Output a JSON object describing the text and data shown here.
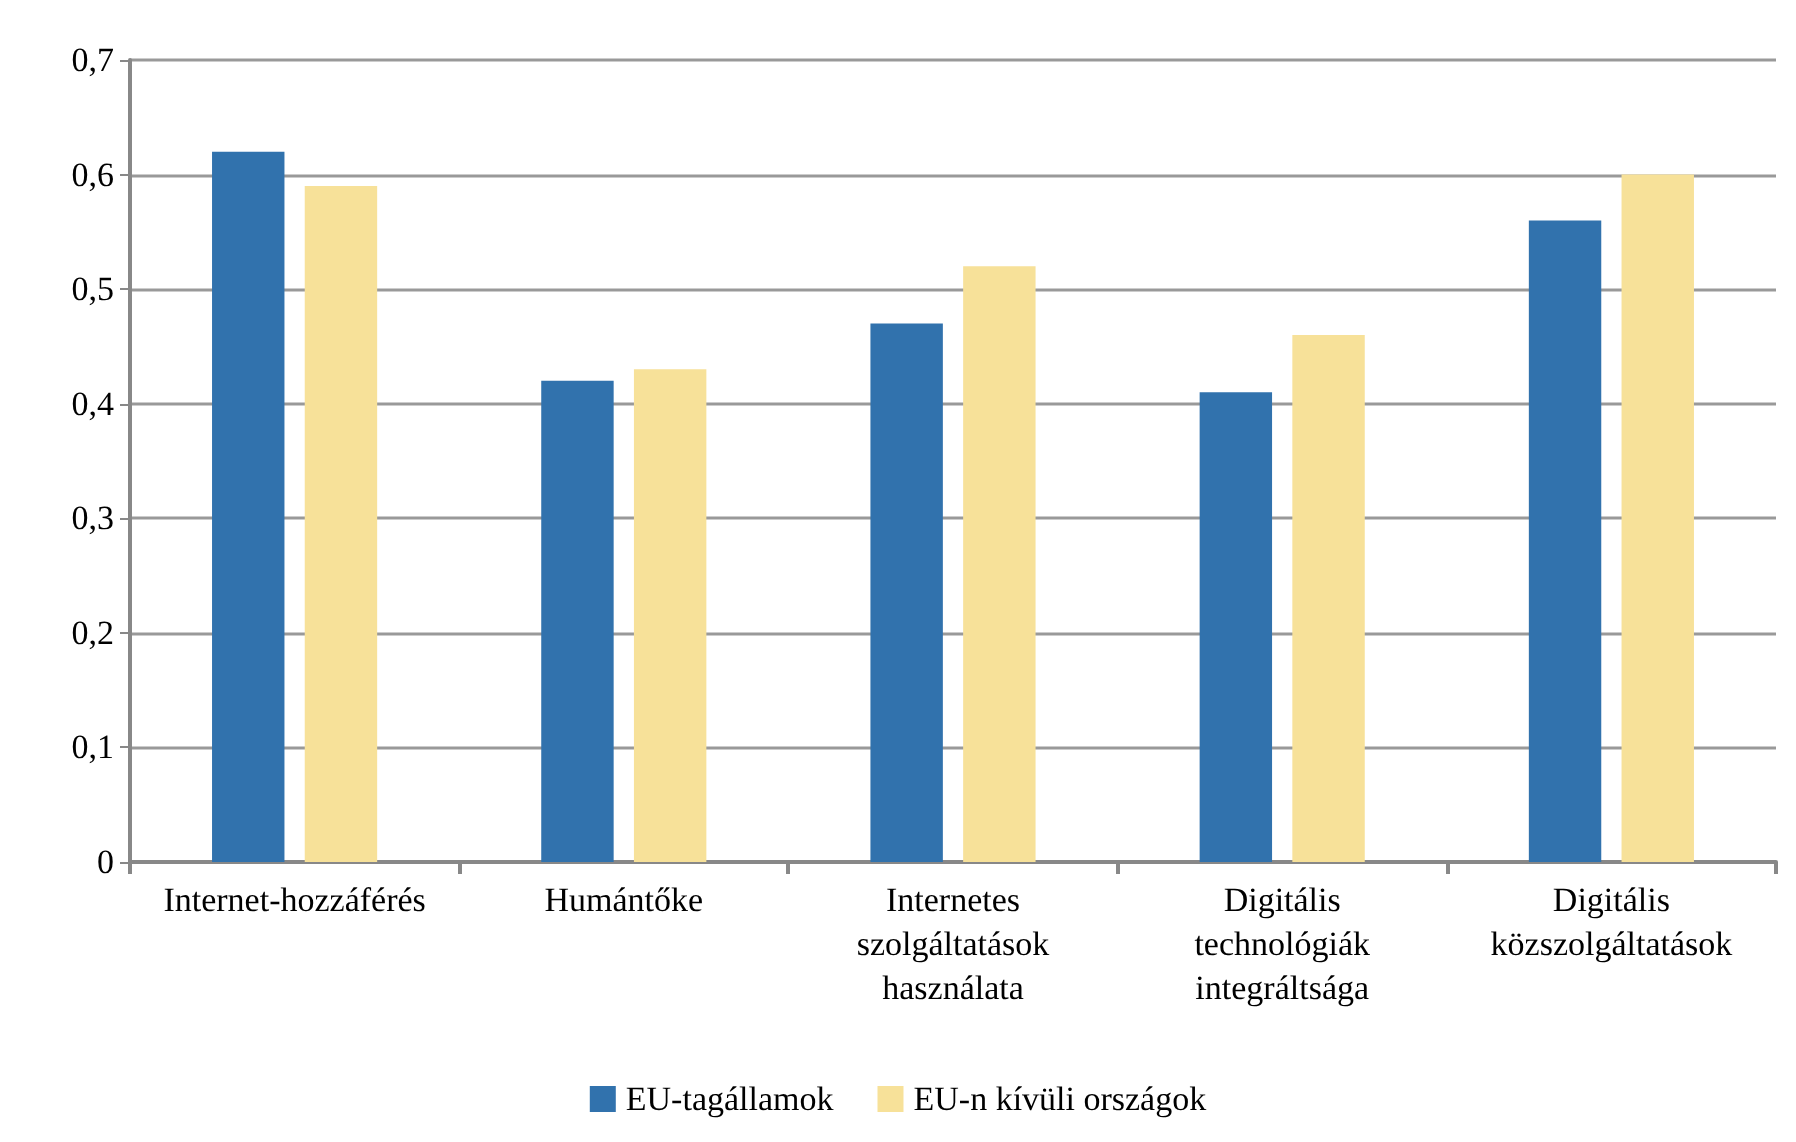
{
  "chart_data": {
    "type": "bar",
    "categories": [
      "Internet-hozzáférés",
      "Humántőke",
      "Internetes\nszolgáltatások\nhasználata",
      "Digitális\ntechnológiák\nintegráltsága",
      "Digitális\nközszolgáltatások"
    ],
    "series": [
      {
        "name": "EU-tagállamok",
        "color": "#3172ad",
        "values": [
          0.62,
          0.42,
          0.47,
          0.41,
          0.56
        ]
      },
      {
        "name": "EU-n kívüli országok",
        "color": "#f7e199",
        "values": [
          0.59,
          0.43,
          0.52,
          0.46,
          0.6
        ]
      }
    ],
    "ylim": [
      0,
      0.7
    ],
    "yticks": [
      0,
      {
        "value": 0.1,
        "label": "0,1"
      },
      {
        "value": 0.2,
        "label": "0,2"
      },
      {
        "value": 0.3,
        "label": "0,3"
      },
      {
        "value": 0.4,
        "label": "0,4"
      },
      {
        "value": 0.5,
        "label": "0,5"
      },
      {
        "value": 0.6,
        "label": "0,6"
      },
      {
        "value": 0.7,
        "label": "0,7"
      }
    ],
    "grid": "y",
    "legend": "bottom"
  }
}
